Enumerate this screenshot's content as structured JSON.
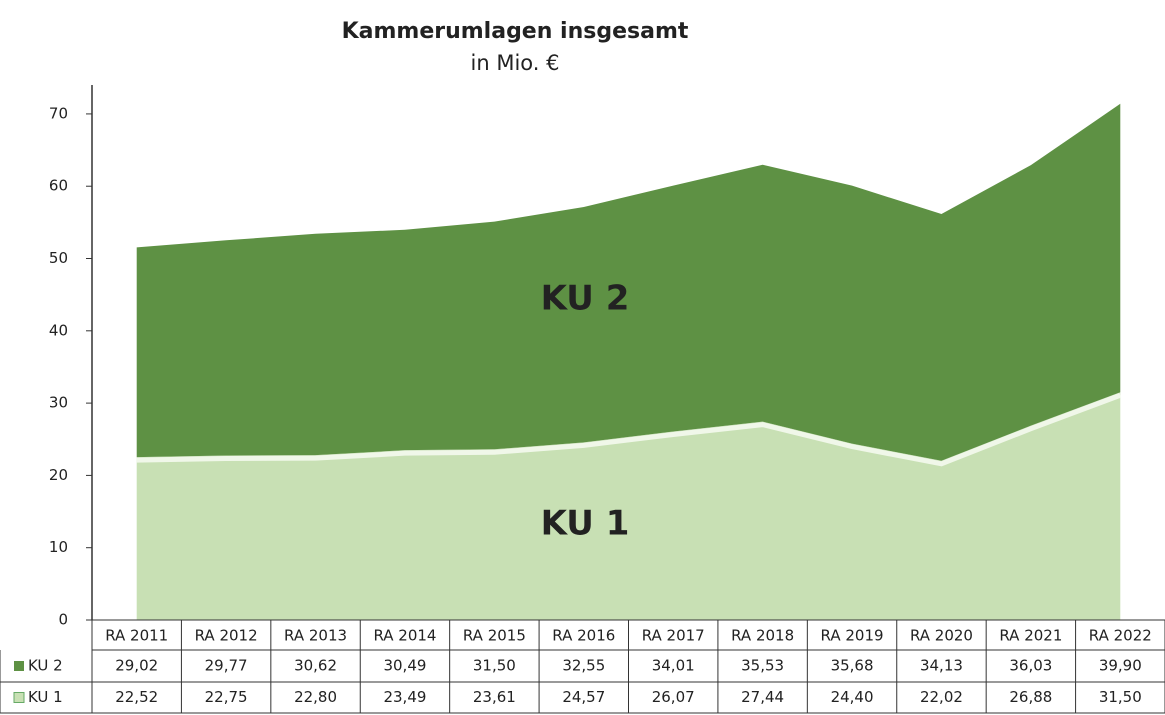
{
  "chart_data": {
    "type": "area",
    "stacked": true,
    "title": "Kammerumlagen insgesamt",
    "subtitle": "in Mio. €",
    "annotations": [
      "KU 2",
      "KU 1"
    ],
    "categories": [
      "RA 2011",
      "RA 2012",
      "RA 2013",
      "RA 2014",
      "RA 2015",
      "RA 2016",
      "RA 2017",
      "RA 2018",
      "RA 2019",
      "RA 2020",
      "RA 2021",
      "RA 2022"
    ],
    "series": [
      {
        "name": "KU 1",
        "color": "#c8e0b4",
        "values": [
          22.52,
          22.75,
          22.8,
          23.49,
          23.61,
          24.57,
          26.07,
          27.44,
          24.4,
          22.02,
          26.88,
          31.5
        ],
        "value_labels": [
          "22,52",
          "22,75",
          "22,80",
          "23,49",
          "23,61",
          "24,57",
          "26,07",
          "27,44",
          "24,40",
          "22,02",
          "26,88",
          "31,50"
        ]
      },
      {
        "name": "KU 2",
        "color": "#5e9144",
        "values": [
          29.02,
          29.77,
          30.62,
          30.49,
          31.5,
          32.55,
          34.01,
          35.53,
          35.68,
          34.13,
          36.03,
          39.9
        ],
        "value_labels": [
          "29,02",
          "29,77",
          "30,62",
          "30,49",
          "31,50",
          "32,55",
          "34,01",
          "35,53",
          "35,68",
          "34,13",
          "36,03",
          "39,90"
        ]
      }
    ],
    "ylim": [
      0,
      74
    ],
    "yticks": [
      0,
      10,
      20,
      30,
      40,
      50,
      60,
      70
    ],
    "grid": false,
    "data_table": true
  }
}
